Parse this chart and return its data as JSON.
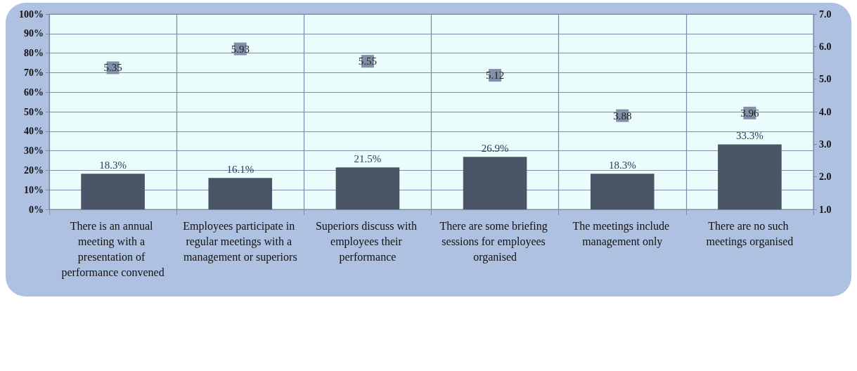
{
  "chart_data": {
    "type": "bar",
    "categories": [
      "There is an annual meeting with a presentation of performance convened",
      "Employees participate in regular meetings with a management or superiors",
      "Superiors discuss with employees their performance",
      "There are some briefing sessions for employees organised",
      "The meetings include management only",
      "There are no such meetings organised"
    ],
    "series": [
      {
        "color": "#4a5568",
        "values": [
          18.3,
          16.1,
          21.5,
          26.9,
          18.3,
          33.3
        ],
        "value_labels": [
          "18.3%",
          "16.1%",
          "21.5%",
          "26.9%",
          "18.3%",
          "33.3%"
        ]
      },
      {
        "type": "scatter",
        "axis": "y2",
        "marker": "square",
        "color": "#8090a8",
        "values": [
          5.35,
          5.93,
          5.55,
          5.12,
          3.88,
          3.96
        ],
        "data_labels": true
      }
    ],
    "ylim": [
      0,
      100
    ],
    "yticks": [
      {
        "value": 0,
        "label": "0%"
      },
      {
        "value": 10,
        "label": "10%"
      },
      {
        "value": 20,
        "label": "20%"
      },
      {
        "value": 30,
        "label": "30%"
      },
      {
        "value": 40,
        "label": "40%"
      },
      {
        "value": 50,
        "label": "50%"
      },
      {
        "value": 60,
        "label": "60%"
      },
      {
        "value": 70,
        "label": "70%"
      },
      {
        "value": 80,
        "label": "80%"
      },
      {
        "value": 90,
        "label": "90%"
      },
      {
        "value": 100,
        "label": "100%"
      }
    ],
    "y2lim": [
      1,
      7
    ],
    "y2ticks": [
      {
        "value": 1,
        "label": "1.0"
      },
      {
        "value": 2,
        "label": "2.0"
      },
      {
        "value": 3,
        "label": "3.0"
      },
      {
        "value": 4,
        "label": "4.0"
      },
      {
        "value": 5,
        "label": "5.0"
      },
      {
        "value": 6,
        "label": "6.0"
      },
      {
        "value": 7,
        "label": "7.0"
      }
    ],
    "grid": true
  }
}
